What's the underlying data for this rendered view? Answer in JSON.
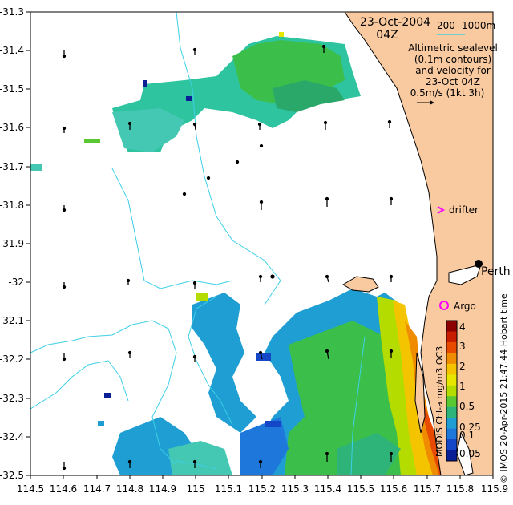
{
  "header": {
    "date": "23-Oct-2004",
    "time": "04Z"
  },
  "scale_bar": {
    "label_200": "200",
    "label_1000": "1000m"
  },
  "note": {
    "lines": [
      "Altimetric sealevel",
      "(0.1m contours)",
      "and velocity for",
      "23-Oct 04Z",
      "0.5m/s (1kt 3h)"
    ]
  },
  "markers": {
    "drifter": "drifter",
    "argo": "Argo",
    "perth": "Perth"
  },
  "axes": {
    "x_ticks": [
      "114.5",
      "114.6",
      "114.7",
      "114.8",
      "114.9",
      "115",
      "115.1",
      "115.2",
      "115.3",
      "115.4",
      "115.5",
      "115.6",
      "115.7",
      "115.8",
      "115.9"
    ],
    "y_ticks": [
      "-31.3",
      "-31.4",
      "-31.5",
      "-31.6",
      "-31.7",
      "-31.8",
      "-31.9",
      "-32",
      "-32.1",
      "-32.2",
      "-32.3",
      "-32.4",
      "-32.5"
    ],
    "xlim": [
      114.5,
      115.9
    ],
    "ylim": [
      -32.5,
      -31.3
    ]
  },
  "colorbar": {
    "ticks": [
      "4",
      "3",
      "2",
      "1",
      "0.5",
      "0.25",
      "0.1",
      "0.05"
    ],
    "label": "MODIS Chl-a mg/m3 OC3",
    "colors": [
      "#8b0000",
      "#c81e00",
      "#e84a00",
      "#f08c00",
      "#f5c400",
      "#e6e600",
      "#b4dc00",
      "#5ac832",
      "#2eb478",
      "#1e9ed2",
      "#1e78dc",
      "#1446c8",
      "#0a1e96"
    ]
  },
  "credit": "© IMOS 20-Apr-2015 21:47:44 Hobart time",
  "colors": {
    "land": "#f9c9a0",
    "contour": "#3dd0e6",
    "marker_magenta": "#ff00ff"
  }
}
